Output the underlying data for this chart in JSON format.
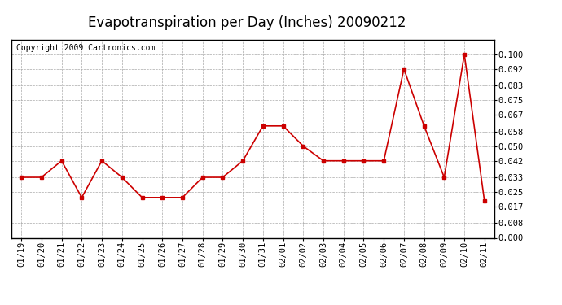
{
  "title": "Evapotranspiration per Day (Inches) 20090212",
  "copyright_text": "Copyright 2009 Cartronics.com",
  "x_labels": [
    "01/19",
    "01/20",
    "01/21",
    "01/22",
    "01/23",
    "01/24",
    "01/25",
    "01/26",
    "01/27",
    "01/28",
    "01/29",
    "01/30",
    "01/31",
    "02/01",
    "02/02",
    "02/03",
    "02/04",
    "02/05",
    "02/06",
    "02/07",
    "02/08",
    "02/09",
    "02/10",
    "02/11"
  ],
  "y_values": [
    0.033,
    0.033,
    0.042,
    0.022,
    0.042,
    0.033,
    0.022,
    0.022,
    0.022,
    0.033,
    0.033,
    0.042,
    0.061,
    0.061,
    0.05,
    0.042,
    0.042,
    0.042,
    0.042,
    0.092,
    0.061,
    0.033,
    0.1,
    0.02
  ],
  "line_color": "#cc0000",
  "marker": "s",
  "marker_size": 3,
  "background_color": "#ffffff",
  "grid_color": "#aaaaaa",
  "ylim": [
    0.0,
    0.108
  ],
  "yticks": [
    0.0,
    0.008,
    0.017,
    0.025,
    0.033,
    0.042,
    0.05,
    0.058,
    0.067,
    0.075,
    0.083,
    0.092,
    0.1
  ],
  "title_fontsize": 12,
  "copyright_fontsize": 7,
  "tick_label_fontsize": 7.5,
  "line_width": 1.2
}
